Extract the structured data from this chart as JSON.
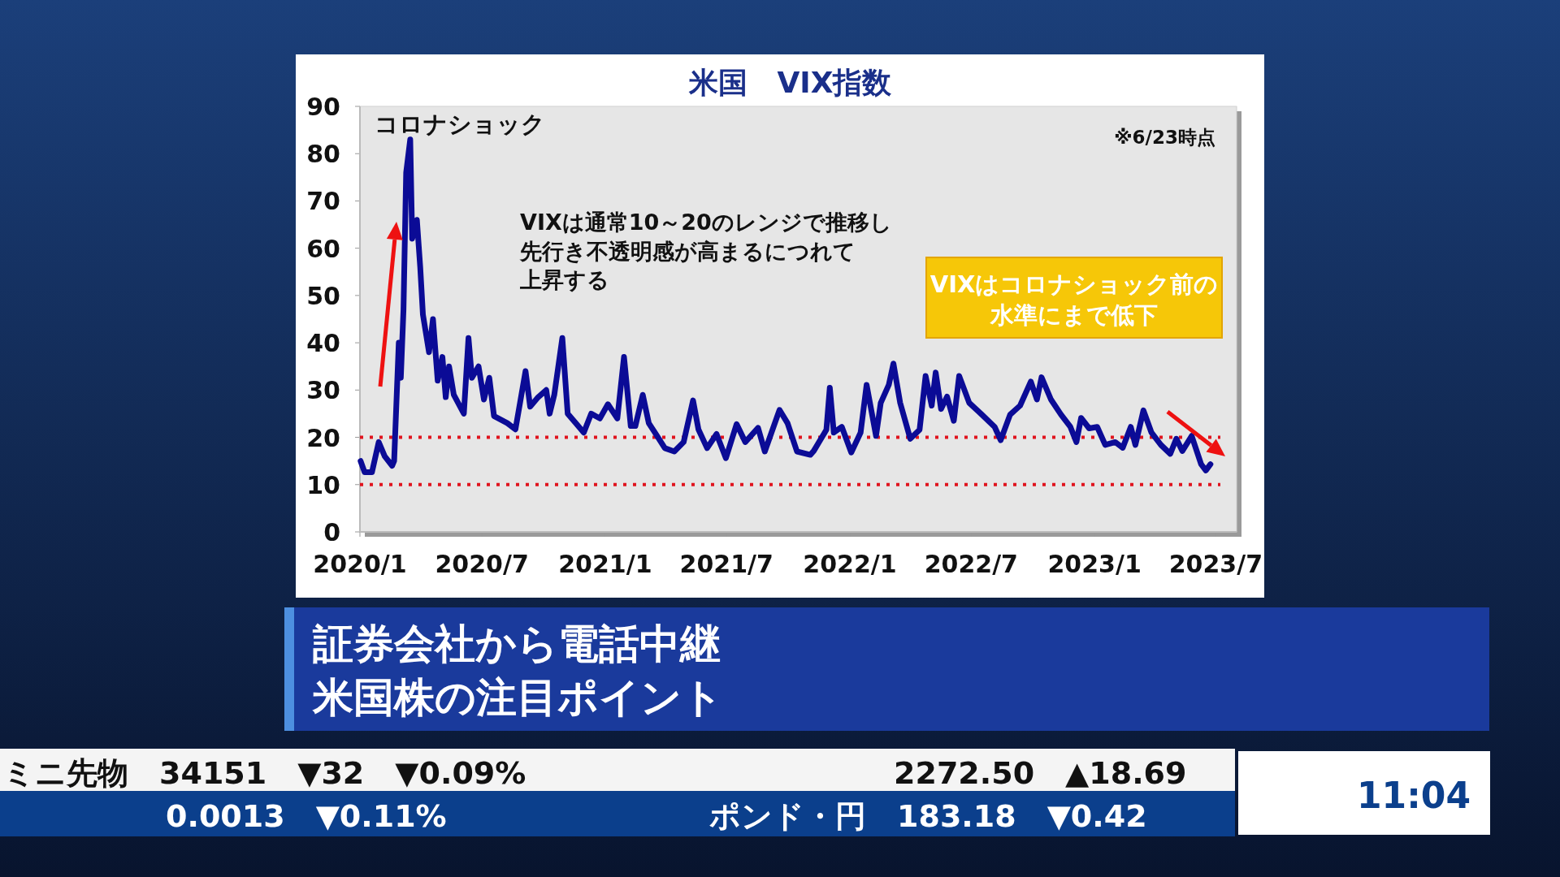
{
  "chart_data": {
    "type": "line",
    "title": "米国　VIX指数",
    "x": [
      "2020-01-02",
      "2020-01-08",
      "2020-01-19",
      "2020-01-29",
      "2020-02-07",
      "2020-02-18",
      "2020-02-21",
      "2020-02-28",
      "2020-03-02",
      "2020-03-06",
      "2020-03-10",
      "2020-03-16",
      "2020-03-19",
      "2020-03-26",
      "2020-03-31",
      "2020-04-04",
      "2020-04-13",
      "2020-04-19",
      "2020-04-26",
      "2020-05-03",
      "2020-05-08",
      "2020-05-13",
      "2020-05-20",
      "2020-06-04",
      "2020-06-11",
      "2020-06-16",
      "2020-06-26",
      "2020-07-04",
      "2020-07-12",
      "2020-07-19",
      "2020-08-08",
      "2020-08-20",
      "2020-09-04",
      "2020-09-11",
      "2020-09-23",
      "2020-10-05",
      "2020-10-10",
      "2020-10-17",
      "2020-10-29",
      "2020-11-06",
      "2020-11-18",
      "2020-11-30",
      "2020-12-11",
      "2020-12-24",
      "2021-01-05",
      "2021-01-19",
      "2021-01-29",
      "2021-02-08",
      "2021-02-15",
      "2021-02-26",
      "2021-03-07",
      "2021-03-16",
      "2021-03-31",
      "2021-04-14",
      "2021-04-28",
      "2021-05-12",
      "2021-05-20",
      "2021-06-02",
      "2021-06-16",
      "2021-06-30",
      "2021-07-16",
      "2021-07-29",
      "2021-08-17",
      "2021-08-27",
      "2021-09-18",
      "2021-09-30",
      "2021-10-14",
      "2021-11-03",
      "2021-11-08",
      "2021-11-27",
      "2021-12-02",
      "2021-12-08",
      "2021-12-20",
      "2022-01-03",
      "2022-01-17",
      "2022-01-26",
      "2022-02-09",
      "2022-02-16",
      "2022-02-28",
      "2022-03-07",
      "2022-03-17",
      "2022-04-01",
      "2022-04-15",
      "2022-04-24",
      "2022-05-03",
      "2022-05-09",
      "2022-05-17",
      "2022-05-26",
      "2022-06-05",
      "2022-06-13",
      "2022-06-28",
      "2022-07-17",
      "2022-08-05",
      "2022-08-14",
      "2022-08-28",
      "2022-09-12",
      "2022-09-28",
      "2022-10-07",
      "2022-10-14",
      "2022-10-28",
      "2022-11-12",
      "2022-11-26",
      "2022-12-05",
      "2022-12-12",
      "2022-12-24",
      "2023-01-05",
      "2023-01-17",
      "2023-02-01",
      "2023-02-12",
      "2023-02-24",
      "2023-03-03",
      "2023-03-15",
      "2023-03-27",
      "2023-04-10",
      "2023-04-24",
      "2023-05-03",
      "2023-05-12",
      "2023-05-26",
      "2023-06-09",
      "2023-06-16",
      "2023-06-23"
    ],
    "series": [
      {
        "color": "#0b0b96",
        "values": [
          15,
          12.6,
          12.6,
          19,
          16,
          14,
          15,
          40,
          32.6,
          47,
          76,
          83,
          62,
          66,
          56,
          46,
          38,
          45,
          32,
          37,
          28.5,
          35,
          29,
          25,
          41,
          32.6,
          35,
          28,
          32.6,
          24.5,
          23,
          21.7,
          34,
          26.5,
          28.5,
          30,
          25,
          29,
          41,
          25,
          23,
          21,
          25,
          24,
          27,
          24,
          37,
          22.4,
          22.4,
          29,
          23,
          21,
          17.7,
          17,
          19,
          27.8,
          21.7,
          17.7,
          20.7,
          15.6,
          22.8,
          19,
          22,
          17,
          25.8,
          23,
          17,
          16.3,
          17.1,
          21.6,
          30.5,
          21,
          22.2,
          16.8,
          21,
          31.1,
          20.3,
          27.3,
          31.1,
          35.6,
          27.3,
          19.7,
          21.6,
          33,
          26.7,
          33.7,
          26,
          28.6,
          23.5,
          33,
          27.3,
          24.8,
          22.2,
          19.4,
          24.8,
          26.7,
          31.8,
          28,
          32.7,
          28,
          24.8,
          22.2,
          19,
          24.1,
          21.9,
          22.2,
          18.4,
          19,
          17.8,
          22.2,
          18.4,
          25.7,
          21,
          18.4,
          16.5,
          19.7,
          17.1,
          20.3,
          14.3,
          13,
          14.3
        ]
      }
    ],
    "xlim": [
      "2020-01-01",
      "2023-08-01"
    ],
    "xticks": [
      {
        "value": "2020-01",
        "label": "2020/1"
      },
      {
        "value": "2020-07",
        "label": "2020/7"
      },
      {
        "value": "2021-01",
        "label": "2021/1"
      },
      {
        "value": "2021-07",
        "label": "2021/7"
      },
      {
        "value": "2022-01",
        "label": "2022/1"
      },
      {
        "value": "2022-07",
        "label": "2022/7"
      },
      {
        "value": "2023-01",
        "label": "2023/1"
      },
      {
        "value": "2023-07",
        "label": "2023/7"
      }
    ],
    "ylim": [
      0,
      90
    ],
    "yticks": [
      0,
      10,
      20,
      30,
      40,
      50,
      60,
      70,
      80,
      90
    ],
    "ref_lines": [
      {
        "axis": "y",
        "value": 20,
        "color": "#e0141e",
        "line_style": "dotted"
      },
      {
        "axis": "y",
        "value": 10,
        "color": "#e0141e",
        "line_style": "dotted"
      }
    ],
    "annotations": [
      "コロナショック",
      "VIXは通常10～20のレンジで推移し先行き不透明感が高まるにつれて上昇する",
      "VIXはコロナショック前の水準にまで低下",
      "※6/23時点",
      "証券会社から電話中継",
      "米国株の注目ポイント",
      "ミニ先物　34151　▼32　▼0.09%",
      "2272.50　▲18.69",
      "0.0013　▼0.11%",
      "ポンド・円　183.18　▼0.42",
      "11:04"
    ]
  }
}
